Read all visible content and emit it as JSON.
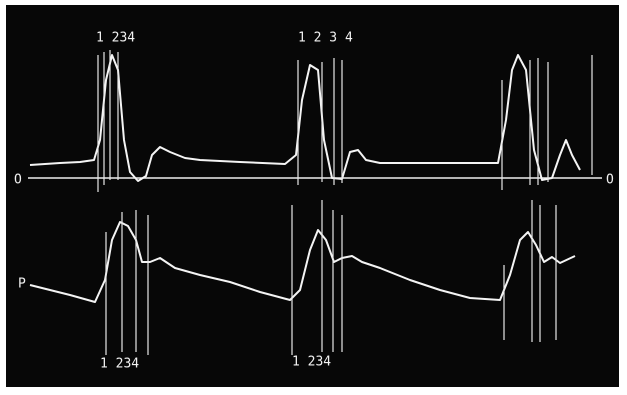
{
  "upper_trace": {
    "label": "O",
    "end_label": "O",
    "marker_groups": [
      "1 234",
      "1 2 3 4"
    ]
  },
  "lower_trace": {
    "label": "P",
    "marker_groups": [
      "1 234",
      "1 234"
    ]
  }
}
